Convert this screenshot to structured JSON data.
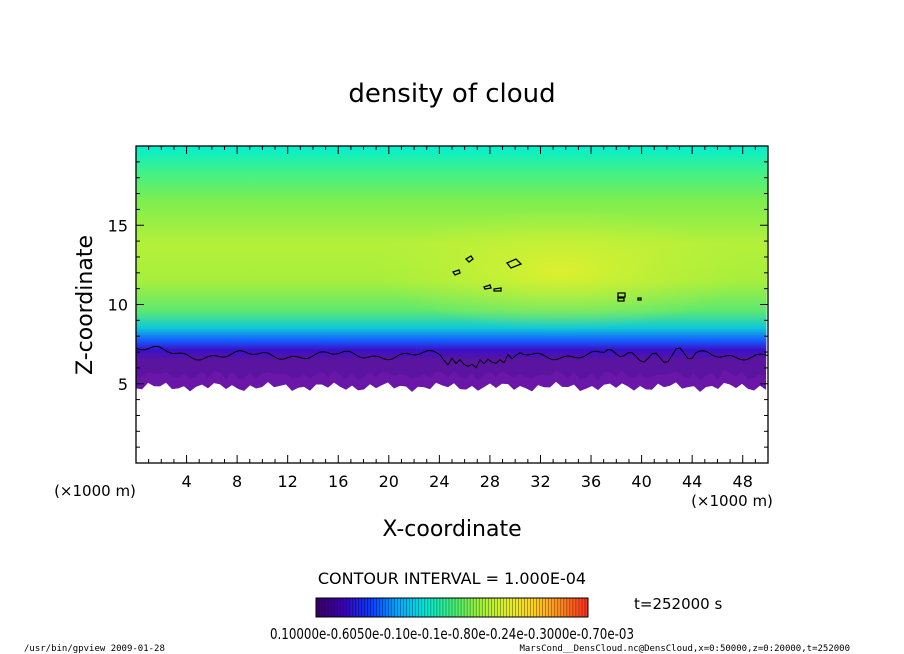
{
  "chart_data": {
    "type": "heatmap",
    "title": "density of cloud",
    "xlabel": "X-coordinate",
    "ylabel": "Z-coordinate",
    "x_unit": "(×1000 m)",
    "z_unit": "(×1000 m)",
    "xlim": [
      0,
      50
    ],
    "ylim": [
      0,
      20
    ],
    "x_ticks": [
      4,
      8,
      12,
      16,
      20,
      24,
      28,
      32,
      36,
      40,
      44,
      48
    ],
    "y_ticks": [
      5,
      10,
      15
    ],
    "cloud_base_km": 5,
    "contour_interval_label": "CONTOUR INTERVAL = 1.000E-04",
    "time_label": "t=252000 s",
    "colorbar_labels": "0.10000e-0.6050e-0.10e-0.1e-0.80e-0.24e-0.3000e-0.70e-03",
    "colorbar_range": [
      0.0001,
      0.001
    ],
    "colormap": [
      "#3a0066",
      "#3b00b8",
      "#0a39ff",
      "#00a8ff",
      "#00e8d8",
      "#3ef07a",
      "#9cf23a",
      "#e0f02a",
      "#ffd21e",
      "#ff8a1e",
      "#ff2a1e"
    ]
  },
  "footer": {
    "left": "/usr/bin/gpview   2009-01-28",
    "right": "MarsCond__DensCloud.nc@DensCloud,x=0:50000,z=0:20000,t=252000"
  }
}
